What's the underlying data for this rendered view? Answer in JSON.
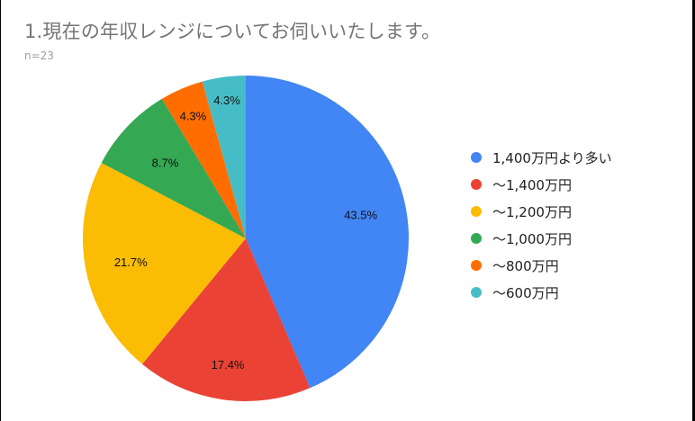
{
  "title": "1.現在の年収レンジについてお伺いいたします。",
  "subtitle": "n=23",
  "chart_data": {
    "type": "pie",
    "title": "1.現在の年収レンジについてお伺いいたします。",
    "subtitle": "n=23",
    "categories": [
      "1,400万円より多い",
      "〜1,400万円",
      "〜1,200万円",
      "〜1,000万円",
      "〜800万円",
      "〜600万円"
    ],
    "values": [
      43.5,
      17.4,
      21.7,
      8.7,
      4.3,
      4.3
    ],
    "labels": [
      "43.5%",
      "17.4%",
      "21.7%",
      "8.7%",
      "4.3%",
      "4.3%"
    ],
    "colors": [
      "#4285f4",
      "#ea4335",
      "#fbbc04",
      "#34a853",
      "#ff6d01",
      "#46bdc6"
    ],
    "start_angle": "12 o'clock, clockwise",
    "legend_position": "right"
  },
  "legend": [
    {
      "label": "1,400万円より多い",
      "color": "#4285f4"
    },
    {
      "label": "〜1,400万円",
      "color": "#ea4335"
    },
    {
      "label": "〜1,200万円",
      "color": "#fbbc04"
    },
    {
      "label": "〜1,000万円",
      "color": "#34a853"
    },
    {
      "label": "〜800万円",
      "color": "#ff6d01"
    },
    {
      "label": "〜600万円",
      "color": "#46bdc6"
    }
  ]
}
